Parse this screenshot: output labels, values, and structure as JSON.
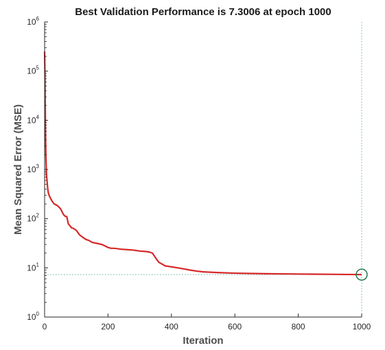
{
  "chart_data": {
    "type": "line",
    "title": "Best Validation Performance is 7.3006 at epoch 1000",
    "xlabel": "Iteration",
    "ylabel": "Mean Squared Error  (MSE)",
    "xlim": [
      0,
      1000
    ],
    "ylim": [
      1,
      1000000
    ],
    "yscale": "log",
    "grid": false,
    "x_ticks": [
      0,
      200,
      400,
      600,
      800,
      1000
    ],
    "x_tick_labels": [
      "0",
      "200",
      "400",
      "600",
      "800",
      "1000"
    ],
    "y_ticks": [
      1,
      10,
      100,
      1000,
      10000,
      100000,
      1000000
    ],
    "y_tick_labels": [
      {
        "base": "10",
        "exp": "0"
      },
      {
        "base": "10",
        "exp": "1"
      },
      {
        "base": "10",
        "exp": "2"
      },
      {
        "base": "10",
        "exp": "3"
      },
      {
        "base": "10",
        "exp": "4"
      },
      {
        "base": "10",
        "exp": "5"
      },
      {
        "base": "10",
        "exp": "6"
      }
    ],
    "series": [
      {
        "color": "#d62728",
        "x": [
          0,
          1,
          2,
          3,
          4,
          5,
          6,
          8,
          10,
          12,
          15,
          20,
          25,
          30,
          40,
          50,
          60,
          65,
          70,
          75,
          80,
          85,
          90,
          100,
          110,
          120,
          130,
          140,
          150,
          160,
          170,
          180,
          190,
          200,
          210,
          220,
          240,
          260,
          280,
          300,
          320,
          330,
          340,
          350,
          360,
          370,
          380,
          400,
          420,
          440,
          460,
          480,
          500,
          550,
          600,
          650,
          700,
          750,
          800,
          850,
          900,
          950,
          1000
        ],
        "y": [
          250000,
          100000,
          20000,
          5000,
          2000,
          1200,
          800,
          550,
          400,
          330,
          290,
          250,
          220,
          200,
          185,
          160,
          120,
          112,
          110,
          78,
          72,
          65,
          64,
          58,
          47,
          42,
          38,
          36,
          33,
          32,
          31,
          30,
          28,
          26,
          25,
          25,
          24,
          23.5,
          23,
          22,
          21.5,
          21,
          20,
          16,
          13,
          12,
          11,
          10.5,
          10,
          9.5,
          9,
          8.6,
          8.3,
          8,
          7.8,
          7.7,
          7.6,
          7.55,
          7.5,
          7.45,
          7.4,
          7.35,
          7.3006
        ]
      }
    ],
    "best": {
      "x": 1000,
      "y": 7.3006,
      "marker_color": "#1f7a4d",
      "guide_color": "#5fb3a3"
    }
  }
}
